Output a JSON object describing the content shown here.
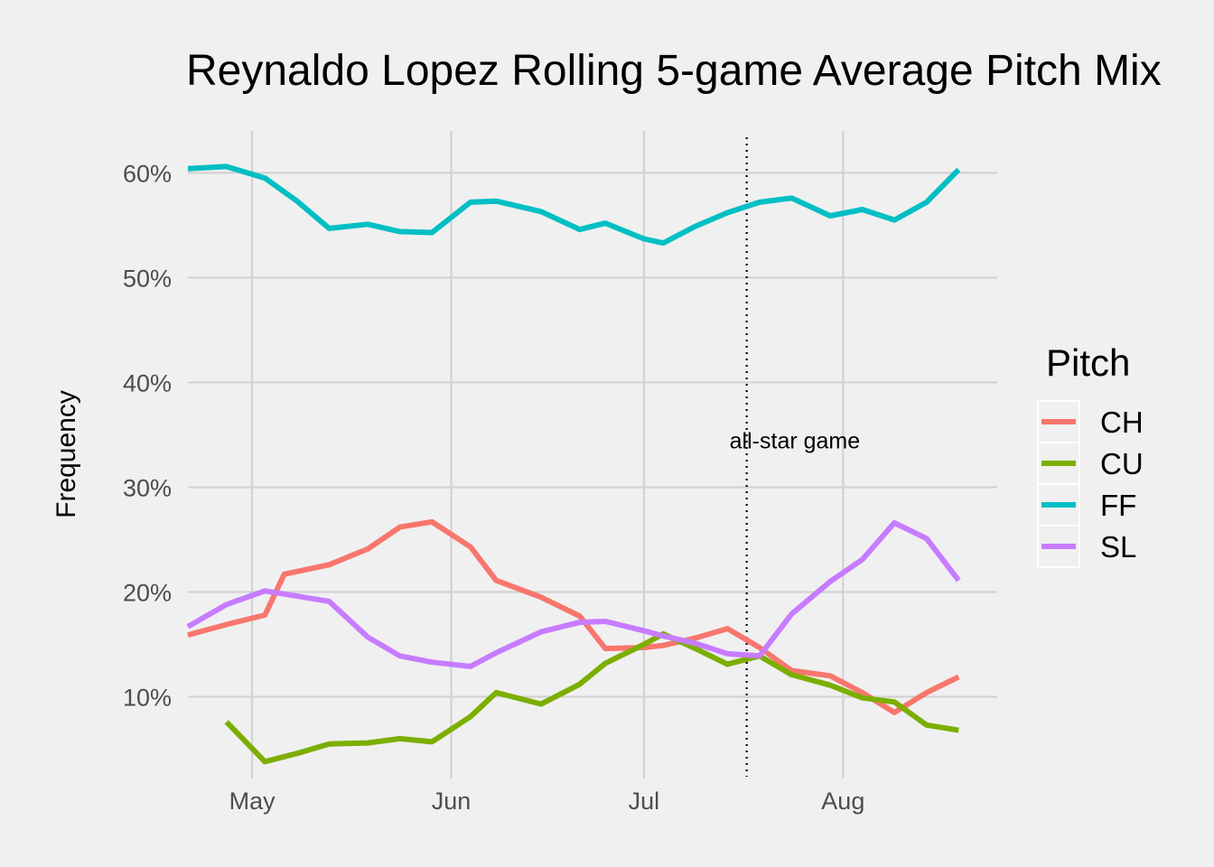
{
  "chart_data": {
    "type": "line",
    "title": "Reynaldo Lopez Rolling 5-game Average Pitch Mix",
    "xlabel": "",
    "ylabel": "Frequency",
    "x_type": "date",
    "x_ticks": [
      {
        "date": "2018-05-01",
        "label": "May"
      },
      {
        "date": "2018-06-01",
        "label": "Jun"
      },
      {
        "date": "2018-07-01",
        "label": "Jul"
      },
      {
        "date": "2018-08-01",
        "label": "Aug"
      }
    ],
    "xlim": [
      "2018-04-21",
      "2018-08-25"
    ],
    "ylim": [
      0.022,
      0.64
    ],
    "y_ticks": [
      {
        "value": 0.1,
        "label": "10%"
      },
      {
        "value": 0.2,
        "label": "20%"
      },
      {
        "value": 0.3,
        "label": "30%"
      },
      {
        "value": 0.4,
        "label": "40%"
      },
      {
        "value": 0.5,
        "label": "50%"
      },
      {
        "value": 0.6,
        "label": "60%"
      }
    ],
    "grid": true,
    "legend": {
      "title": "Pitch",
      "position": "right"
    },
    "series": [
      {
        "name": "CH",
        "color": "#F8766D",
        "x": [
          "2018-04-21",
          "2018-04-27",
          "2018-05-03",
          "2018-05-06",
          "2018-05-13",
          "2018-05-19",
          "2018-05-24",
          "2018-05-29",
          "2018-06-04",
          "2018-06-08",
          "2018-06-15",
          "2018-06-21",
          "2018-06-25",
          "2018-07-01",
          "2018-07-04",
          "2018-07-09",
          "2018-07-14",
          "2018-07-19",
          "2018-07-24",
          "2018-07-30",
          "2018-08-04",
          "2018-08-09",
          "2018-08-14",
          "2018-08-19"
        ],
        "y": [
          0.159,
          0.169,
          0.178,
          0.217,
          0.226,
          0.241,
          0.262,
          0.267,
          0.243,
          0.211,
          0.195,
          0.177,
          0.146,
          0.147,
          0.149,
          0.156,
          0.165,
          0.147,
          0.125,
          0.12,
          0.104,
          0.085,
          0.104,
          0.119
        ]
      },
      {
        "name": "CU",
        "color": "#7CAE00",
        "x": [
          "2018-04-27",
          "2018-05-03",
          "2018-05-08",
          "2018-05-13",
          "2018-05-19",
          "2018-05-24",
          "2018-05-29",
          "2018-06-04",
          "2018-06-08",
          "2018-06-15",
          "2018-06-21",
          "2018-06-25",
          "2018-07-01",
          "2018-07-04",
          "2018-07-09",
          "2018-07-14",
          "2018-07-19",
          "2018-07-24",
          "2018-07-30",
          "2018-08-04",
          "2018-08-09",
          "2018-08-14",
          "2018-08-19"
        ],
        "y": [
          0.076,
          0.038,
          0.046,
          0.055,
          0.056,
          0.06,
          0.057,
          0.081,
          0.104,
          0.093,
          0.112,
          0.132,
          0.15,
          0.16,
          0.146,
          0.131,
          0.139,
          0.121,
          0.111,
          0.099,
          0.095,
          0.073,
          0.068
        ]
      },
      {
        "name": "FF",
        "color": "#00BFC4",
        "x": [
          "2018-04-21",
          "2018-04-27",
          "2018-05-03",
          "2018-05-08",
          "2018-05-13",
          "2018-05-19",
          "2018-05-24",
          "2018-05-29",
          "2018-06-04",
          "2018-06-08",
          "2018-06-15",
          "2018-06-21",
          "2018-06-25",
          "2018-07-01",
          "2018-07-04",
          "2018-07-09",
          "2018-07-14",
          "2018-07-19",
          "2018-07-24",
          "2018-07-30",
          "2018-08-04",
          "2018-08-09",
          "2018-08-14",
          "2018-08-19"
        ],
        "y": [
          0.604,
          0.606,
          0.595,
          0.573,
          0.547,
          0.551,
          0.544,
          0.543,
          0.572,
          0.573,
          0.563,
          0.546,
          0.552,
          0.537,
          0.533,
          0.549,
          0.562,
          0.572,
          0.576,
          0.559,
          0.565,
          0.555,
          0.572,
          0.603
        ]
      },
      {
        "name": "SL",
        "color": "#C77CFF",
        "x": [
          "2018-04-21",
          "2018-04-27",
          "2018-05-03",
          "2018-05-08",
          "2018-05-13",
          "2018-05-19",
          "2018-05-24",
          "2018-05-29",
          "2018-06-04",
          "2018-06-08",
          "2018-06-15",
          "2018-06-21",
          "2018-06-25",
          "2018-07-01",
          "2018-07-04",
          "2018-07-09",
          "2018-07-14",
          "2018-07-19",
          "2018-07-24",
          "2018-07-30",
          "2018-08-04",
          "2018-08-09",
          "2018-08-14",
          "2018-08-19"
        ],
        "y": [
          0.167,
          0.188,
          0.201,
          0.196,
          0.191,
          0.157,
          0.139,
          0.133,
          0.129,
          0.142,
          0.162,
          0.171,
          0.172,
          0.163,
          0.158,
          0.151,
          0.141,
          0.139,
          0.179,
          0.21,
          0.231,
          0.266,
          0.251,
          0.211
        ]
      }
    ],
    "annotations": [
      {
        "type": "vline",
        "date": "2018-07-17",
        "style": "dotted",
        "label": "all-star game",
        "label_y": 0.345
      }
    ]
  }
}
